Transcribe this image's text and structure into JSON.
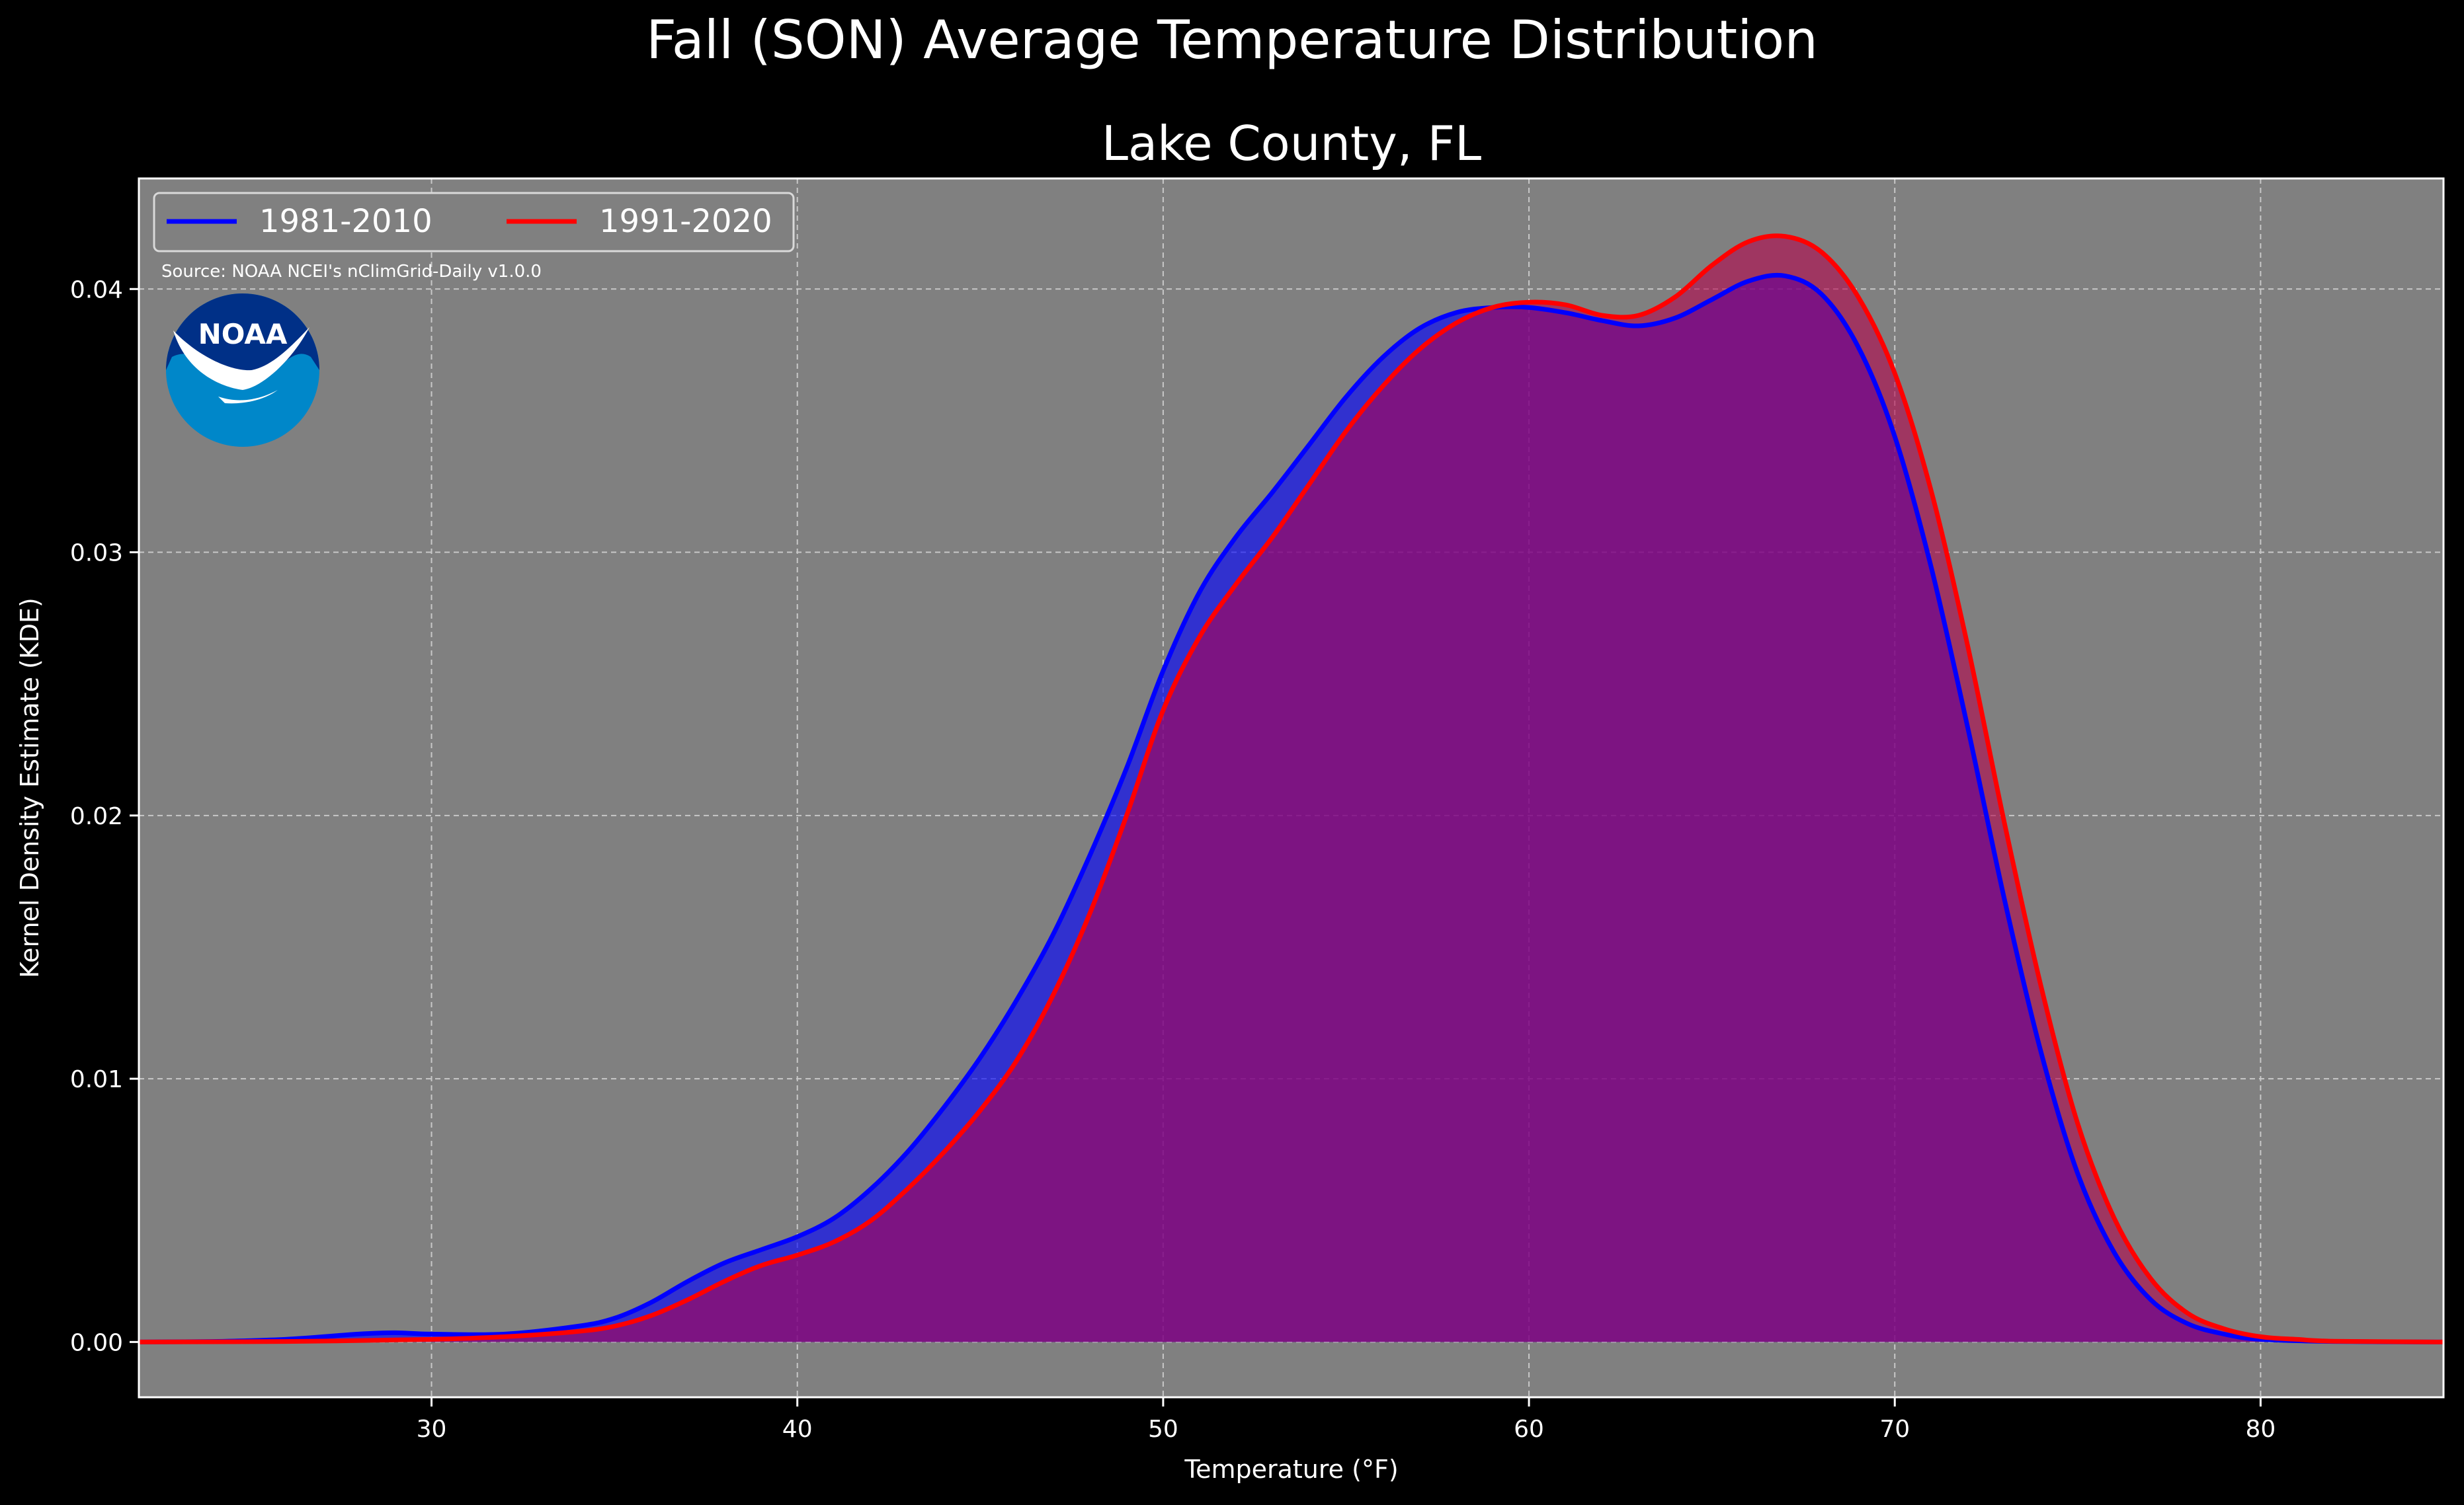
{
  "page": {
    "suptitle": "Fall (SON) Average Temperature Distribution",
    "title": "Lake County, FL",
    "source": "Source: NOAA NCEI's nClimGrid-Daily v1.0.0",
    "logo_text": "NOAA"
  },
  "chart_data": {
    "type": "area",
    "xlabel": "Temperature (°F)",
    "ylabel": "Kernel Density Estimate (KDE)",
    "xlim": [
      22,
      85
    ],
    "ylim": [
      -0.0021,
      0.0442
    ],
    "xticks": [
      30,
      40,
      50,
      60,
      70,
      80
    ],
    "yticks": [
      0.0,
      0.01,
      0.02,
      0.03,
      0.04
    ],
    "ytick_labels": [
      "0.00",
      "0.01",
      "0.02",
      "0.03",
      "0.04"
    ],
    "grid": true,
    "legend_position": "top-left",
    "background_color": "#808080",
    "series": [
      {
        "name": "1981-2010",
        "color": "#0000ff",
        "fill_color": "#0000ff",
        "x": [
          22,
          24,
          26,
          28,
          29,
          30,
          32,
          34,
          35,
          36,
          37,
          38,
          39,
          40,
          41,
          42,
          43,
          44,
          45,
          46,
          47,
          48,
          49,
          50,
          51,
          52,
          53,
          54,
          55,
          56,
          57,
          58,
          59,
          60,
          61,
          62,
          63,
          64,
          65,
          66,
          67,
          68,
          69,
          70,
          71,
          72,
          73,
          74,
          75,
          76,
          77,
          78,
          79,
          80,
          82,
          85
        ],
        "y": [
          0.0,
          2e-05,
          0.0001,
          0.0003,
          0.00035,
          0.0003,
          0.0003,
          0.0006,
          0.0009,
          0.0015,
          0.0023,
          0.003,
          0.0035,
          0.004,
          0.0047,
          0.0058,
          0.0072,
          0.0089,
          0.0108,
          0.013,
          0.0155,
          0.0185,
          0.0218,
          0.0255,
          0.0285,
          0.0306,
          0.0323,
          0.0341,
          0.0359,
          0.0374,
          0.0385,
          0.0391,
          0.0393,
          0.0393,
          0.0391,
          0.0388,
          0.0386,
          0.0389,
          0.0396,
          0.0403,
          0.0405,
          0.0398,
          0.0378,
          0.0344,
          0.0294,
          0.0233,
          0.0168,
          0.011,
          0.0064,
          0.0034,
          0.0016,
          0.0007,
          0.0003,
          0.0001,
          2e-05,
          0.0
        ]
      },
      {
        "name": "1991-2020",
        "color": "#ff0000",
        "fill_color": "#b5004a",
        "x": [
          22,
          26,
          30,
          32,
          34,
          35,
          36,
          37,
          38,
          39,
          40,
          41,
          42,
          43,
          44,
          45,
          46,
          47,
          48,
          49,
          50,
          51,
          52,
          53,
          54,
          55,
          56,
          57,
          58,
          59,
          60,
          61,
          62,
          63,
          64,
          65,
          66,
          67,
          68,
          69,
          70,
          71,
          72,
          73,
          74,
          75,
          76,
          77,
          78,
          79,
          80,
          81,
          82,
          85
        ],
        "y": [
          0.0,
          2e-05,
          0.0001,
          0.0002,
          0.0004,
          0.0006,
          0.001,
          0.0016,
          0.0023,
          0.0029,
          0.0033,
          0.0038,
          0.0046,
          0.0058,
          0.0072,
          0.0088,
          0.0107,
          0.0132,
          0.0163,
          0.02,
          0.024,
          0.0268,
          0.0288,
          0.0306,
          0.0326,
          0.0346,
          0.0363,
          0.0377,
          0.0387,
          0.0393,
          0.0395,
          0.0394,
          0.039,
          0.039,
          0.0397,
          0.0409,
          0.0418,
          0.042,
          0.0414,
          0.0397,
          0.0368,
          0.0323,
          0.0264,
          0.0197,
          0.0135,
          0.0083,
          0.0047,
          0.0024,
          0.0011,
          0.0005,
          0.0002,
          0.0001,
          3e-05,
          0.0
        ]
      }
    ]
  }
}
